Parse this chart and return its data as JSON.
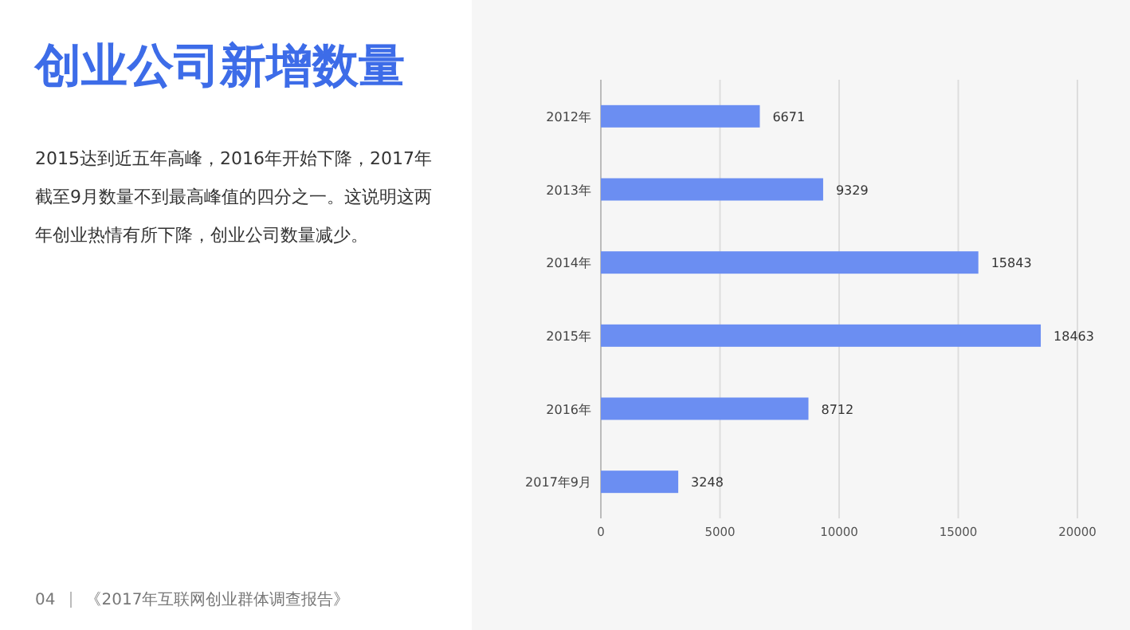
{
  "chart_data": {
    "type": "bar",
    "orientation": "horizontal",
    "title": "创业公司新增数量",
    "subtitle": "2015达到近五年高峰，2016年开始下降，2017年截至9月数量不到最高峰值的四分之一。这说明这两年创业热情有所下降，创业公司数量减少。",
    "categories": [
      "2012年",
      "2013年",
      "2014年",
      "2015年",
      "2016年",
      "2017年9月"
    ],
    "values": [
      6671,
      9329,
      15843,
      18463,
      8712,
      3248
    ],
    "color": "#6b8ef2",
    "xlim": [
      0,
      20000
    ],
    "xticks": [
      0,
      5000,
      10000,
      15000,
      20000
    ],
    "grid": "x",
    "data_labels": true,
    "annotations": [
      "04",
      "《2017年互联网创业群体调查报告》"
    ]
  }
}
